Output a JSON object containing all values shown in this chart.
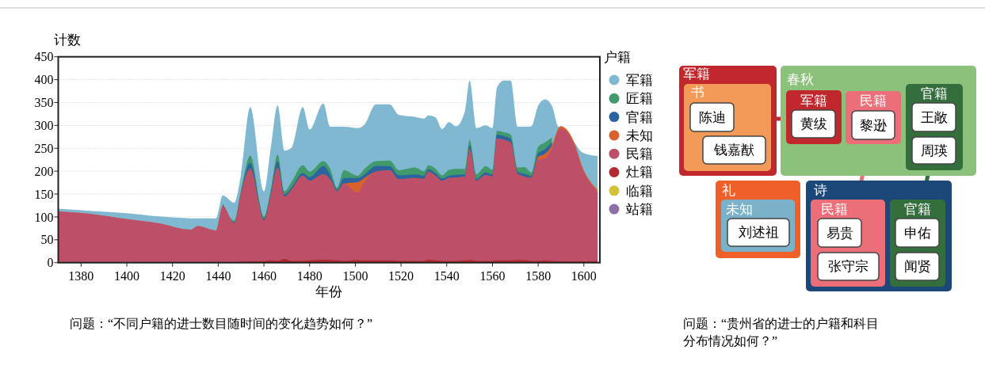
{
  "chart_data": [
    {
      "type": "area",
      "stacked": true,
      "xlabel": "年份",
      "ylabel": "计数",
      "legend_title": "户籍",
      "legend": "right",
      "grid": "y",
      "xlim": [
        1370,
        1607
      ],
      "ylim": [
        0,
        450
      ],
      "xticks": [
        1380,
        1400,
        1420,
        1440,
        1460,
        1480,
        1500,
        1520,
        1540,
        1560,
        1580,
        1600
      ],
      "yticks": [
        0,
        50,
        100,
        150,
        200,
        250,
        300,
        350,
        400,
        450
      ],
      "x": [
        1370,
        1385,
        1400,
        1414,
        1428,
        1431,
        1437,
        1439,
        1442,
        1447,
        1450,
        1454,
        1460,
        1463,
        1466,
        1469,
        1472,
        1477,
        1480,
        1486,
        1489,
        1492,
        1495,
        1501,
        1504,
        1509,
        1515,
        1519,
        1526,
        1530,
        1532,
        1535,
        1538,
        1541,
        1544,
        1548,
        1550,
        1553,
        1557,
        1560,
        1562,
        1565,
        1568,
        1571,
        1574,
        1577,
        1580,
        1583,
        1586,
        1589,
        1590,
        1596,
        1599,
        1606
      ],
      "series": [
        {
          "name": "站籍",
          "color": "#8e6fa8",
          "values": [
            null,
            null,
            null,
            null,
            null,
            null,
            null,
            null,
            null,
            null,
            null,
            null,
            null,
            null,
            null,
            null,
            null,
            null,
            null,
            null,
            null,
            null,
            null,
            null,
            null,
            null,
            null,
            null,
            null,
            null,
            null,
            null,
            null,
            null,
            null,
            null,
            null,
            null,
            null,
            null,
            null,
            null,
            null,
            null,
            null,
            null,
            null,
            null,
            null,
            null,
            null,
            null,
            null,
            null
          ]
        },
        {
          "name": "临籍",
          "color": "#d4c13a",
          "values": [
            null,
            null,
            null,
            null,
            null,
            null,
            null,
            null,
            null,
            null,
            null,
            null,
            null,
            null,
            null,
            null,
            null,
            null,
            null,
            null,
            null,
            null,
            null,
            null,
            null,
            null,
            null,
            null,
            null,
            null,
            null,
            null,
            null,
            null,
            null,
            null,
            null,
            null,
            null,
            null,
            null,
            null,
            null,
            null,
            null,
            null,
            null,
            null,
            null,
            null,
            null,
            null,
            null,
            null
          ]
        },
        {
          "name": "灶籍",
          "color": "#b02a30",
          "values": [
            1,
            1,
            1,
            1,
            1,
            1,
            1,
            1,
            1,
            1,
            2,
            3,
            3,
            5,
            4,
            8,
            4,
            4,
            5,
            7,
            6,
            5,
            4,
            6,
            5,
            5,
            5,
            4,
            4,
            4,
            7,
            5,
            4,
            4,
            4,
            5,
            6,
            4,
            4,
            4,
            5,
            5,
            5,
            6,
            6,
            4,
            4,
            5,
            4,
            3,
            3,
            3,
            3,
            4
          ]
        },
        {
          "name": "民籍",
          "color": "#bd5068",
          "values": [
            111,
            105,
            94,
            85,
            71,
            79,
            71,
            69,
            123,
            85,
            148,
            202,
            89,
            142,
            204,
            136,
            155,
            186,
            174,
            186,
            176,
            151,
            169,
            147,
            171,
            194,
            197,
            178,
            181,
            179,
            192,
            185,
            175,
            181,
            182,
            183,
            242,
            175,
            187,
            184,
            266,
            263,
            257,
            188,
            182,
            181,
            221,
            223,
            247,
            287,
            290,
            252,
            207,
            151
          ]
        },
        {
          "name": "未知",
          "color": "#d9612e",
          "values": [
            0,
            0,
            0,
            0,
            0,
            0,
            0,
            0,
            0,
            0,
            0,
            0,
            0,
            0,
            0,
            0,
            0,
            0,
            0,
            0,
            0,
            0,
            0,
            23,
            9,
            0,
            0,
            0,
            0,
            0,
            0,
            0,
            0,
            0,
            0,
            0,
            0,
            0,
            0,
            0,
            0,
            0,
            0,
            0,
            0,
            0,
            6,
            10,
            5,
            5,
            5,
            5,
            4,
            4
          ]
        },
        {
          "name": "官籍",
          "color": "#2c64a0",
          "values": [
            null,
            null,
            null,
            null,
            null,
            null,
            null,
            null,
            3,
            2,
            4,
            13,
            4,
            6,
            14,
            5,
            5,
            6,
            8,
            18,
            10,
            3,
            12,
            9,
            8,
            12,
            9,
            9,
            8,
            7,
            5,
            6,
            5,
            5,
            6,
            5,
            8,
            4,
            6,
            5,
            9,
            9,
            8,
            5,
            6,
            4,
            8,
            10,
            8,
            null,
            null,
            null,
            null,
            null
          ]
        },
        {
          "name": "匠籍",
          "color": "#409a6c",
          "values": [
            null,
            null,
            null,
            null,
            null,
            null,
            null,
            null,
            3,
            4,
            5,
            16,
            5,
            7,
            14,
            7,
            12,
            17,
            12,
            11,
            13,
            5,
            17,
            5,
            12,
            11,
            12,
            11,
            15,
            10,
            9,
            10,
            7,
            13,
            13,
            12,
            12,
            10,
            14,
            10,
            8,
            8,
            10,
            9,
            15,
            8,
            14,
            15,
            10,
            null,
            null,
            null,
            null,
            null
          ]
        },
        {
          "name": "军籍",
          "color": "#7fb8d0",
          "values": [
            6,
            7,
            13,
            15,
            25,
            17,
            25,
            27,
            17,
            39,
            34,
            106,
            55,
            91,
            108,
            89,
            75,
            127,
            92,
            126,
            92,
            133,
            95,
            104,
            97,
            124,
            123,
            121,
            111,
            115,
            109,
            112,
            101,
            104,
            93,
            127,
            130,
            101,
            89,
            91,
            95,
            113,
            118,
            89,
            88,
            101,
            90,
            94,
            69,
            2,
            0,
            2,
            28,
            74
          ]
        }
      ],
      "annotations": [
        "问题：“不同户籍的进士数目随时间的变化趋势如何？”"
      ]
    },
    {
      "type": "other",
      "annotations": [
        "军籍",
        "书",
        "陈迪",
        "钱嘉猷",
        "春秋",
        "军籍",
        "黄绂",
        "民籍",
        "黎逊",
        "官籍",
        "王敞",
        "周瑛",
        "礼",
        "未知",
        "刘述祖",
        "诗",
        "民籍",
        "易贵",
        "张守宗",
        "官籍",
        "申佑",
        "闻贤",
        "问题：“贵州省的进士的户籍和科目",
        "分布情况如何？”"
      ]
    }
  ]
}
